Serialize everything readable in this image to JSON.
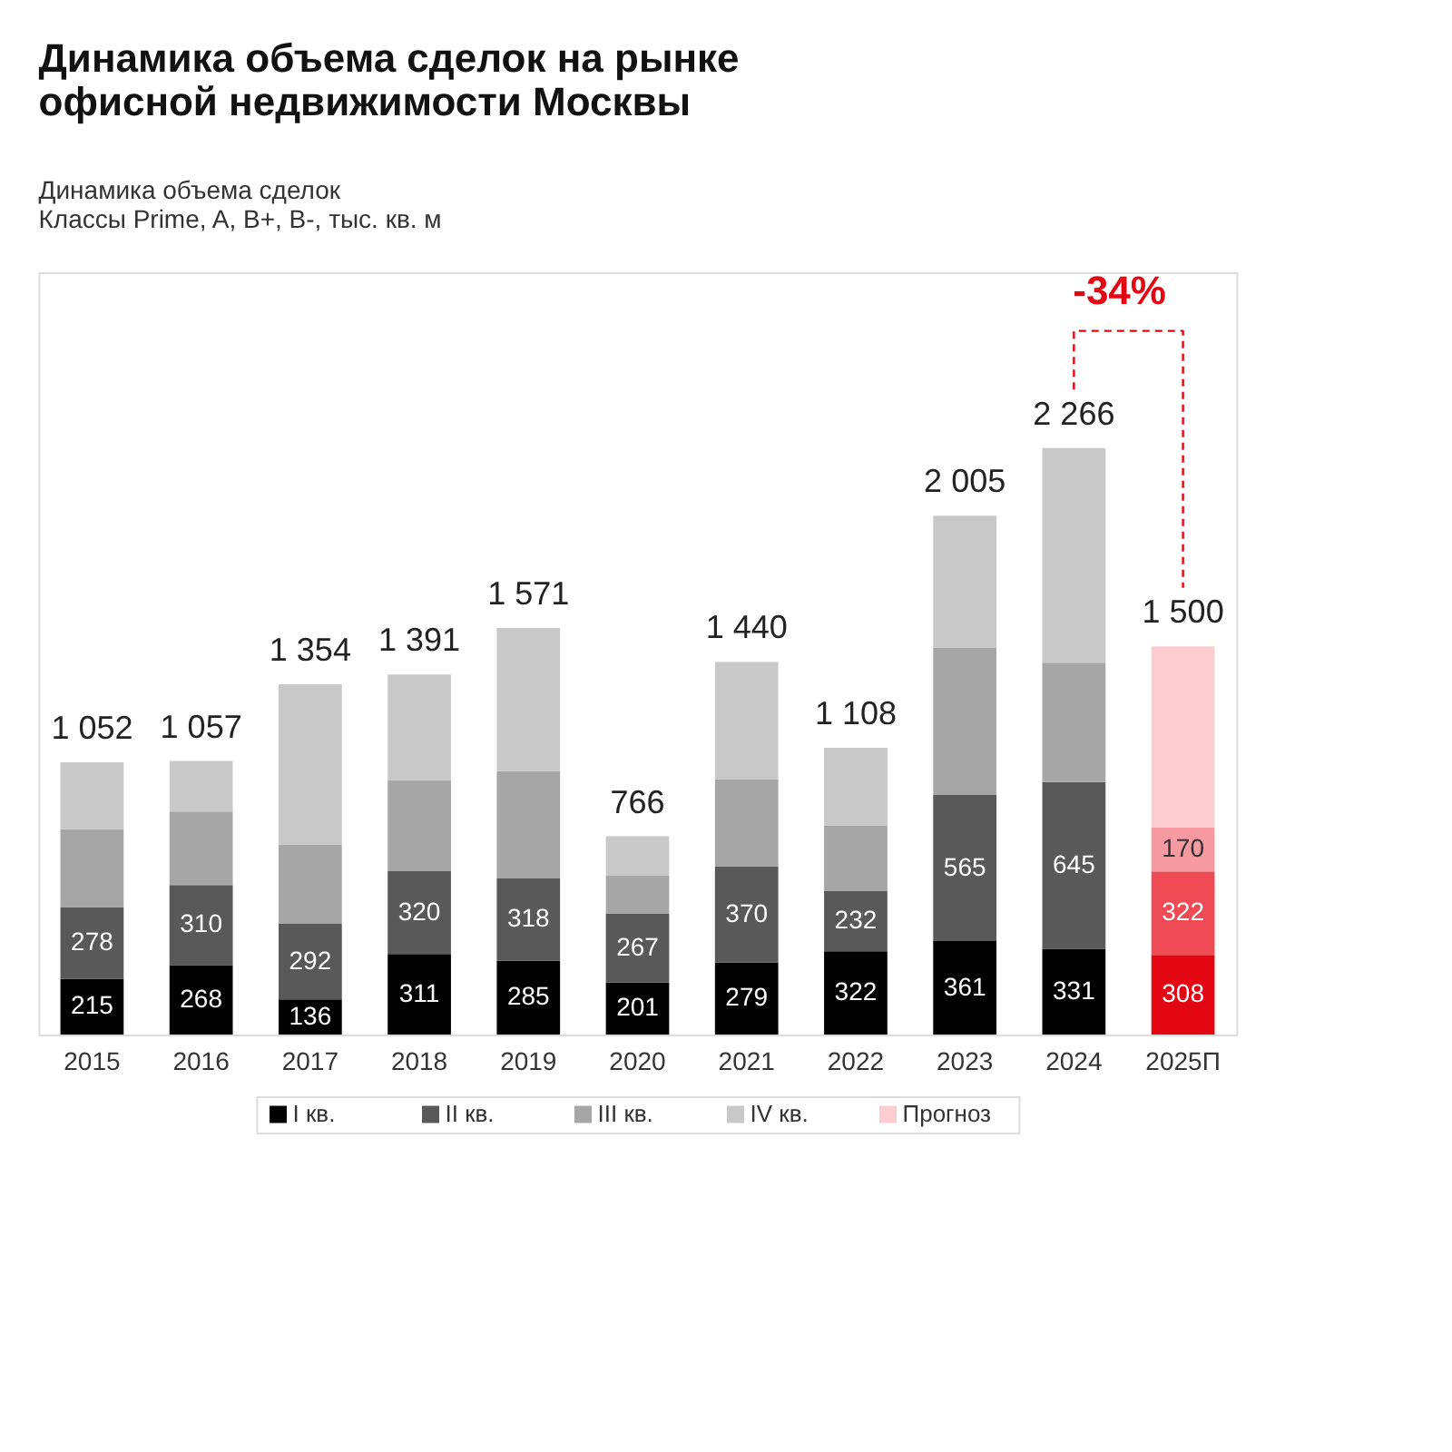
{
  "chart_data": {
    "type": "bar",
    "stacked": true,
    "title": "Динамика объема сделок на рынке офисной недвижимости Москвы",
    "subtitle": "Динамика объема сделок",
    "categories": [
      "2015",
      "2016",
      "2017",
      "2018",
      "2019",
      "2020",
      "2021",
      "2022",
      "2023",
      "2024",
      "2025П"
    ],
    "series": [
      {
        "name": "I кв.",
        "color": "#000000",
        "colors": [
          "#000000",
          "#000000",
          "#000000",
          "#000000",
          "#000000",
          "#000000",
          "#000000",
          "#000000",
          "#000000",
          "#000000",
          "#e30613"
        ],
        "values": [
          215,
          268,
          136,
          311,
          285,
          201,
          279,
          322,
          361,
          331,
          308
        ],
        "value_labels": [
          "215",
          "268",
          "136",
          "311",
          "285",
          "201",
          "279",
          "322",
          "361",
          "331",
          "308"
        ]
      },
      {
        "name": "II кв.",
        "color": "#595959",
        "colors": [
          "#595959",
          "#595959",
          "#595959",
          "#595959",
          "#595959",
          "#595959",
          "#595959",
          "#595959",
          "#595959",
          "#595959",
          "#ef4b55"
        ],
        "values": [
          278,
          310,
          292,
          320,
          318,
          267,
          370,
          232,
          565,
          645,
          322
        ],
        "value_labels": [
          "278",
          "310",
          "292",
          "320",
          "318",
          "267",
          "370",
          "232",
          "565",
          "645",
          "322"
        ]
      },
      {
        "name": "III кв.",
        "color": "#a6a6a6",
        "colors": [
          "#a6a6a6",
          "#a6a6a6",
          "#a6a6a6",
          "#a6a6a6",
          "#a6a6a6",
          "#a6a6a6",
          "#a6a6a6",
          "#a6a6a6",
          "#a6a6a6",
          "#a6a6a6",
          "#f59aa1"
        ],
        "values": [
          300,
          284,
          307,
          353,
          415,
          146,
          338,
          253,
          568,
          461,
          170
        ],
        "value_labels": [
          null,
          null,
          null,
          null,
          null,
          null,
          null,
          null,
          null,
          null,
          "170"
        ]
      },
      {
        "name": "IV кв.",
        "color": "#c8c8c8",
        "colors": [
          "#c8c8c8",
          "#c8c8c8",
          "#c8c8c8",
          "#c8c8c8",
          "#c8c8c8",
          "#c8c8c8",
          "#c8c8c8",
          "#c8c8c8",
          "#c8c8c8",
          "#c8c8c8",
          "#c8c8c8"
        ],
        "values": [
          259,
          195,
          619,
          407,
          553,
          152,
          453,
          301,
          511,
          829,
          null
        ]
      },
      {
        "name": "Прогноз",
        "color": "#fbcdd1",
        "colors": [
          "#fbcdd1",
          "#fbcdd1",
          "#fbcdd1",
          "#fbcdd1",
          "#fbcdd1",
          "#fbcdd1",
          "#fbcdd1",
          "#fbcdd1",
          "#fbcdd1",
          "#fbcdd1",
          "#fbcdd1"
        ],
        "values": [
          null,
          null,
          null,
          null,
          null,
          null,
          null,
          null,
          null,
          null,
          700
        ]
      }
    ],
    "totals": [
      "1 052",
      "1 057",
      "1 354",
      "1 391",
      "1 571",
      "766",
      "1 440",
      "1 108",
      "2 005",
      "2 266",
      "1 500"
    ],
    "annotations": [
      "Классы Prime, A, B+, B-, тыс. кв. м",
      "-34%"
    ],
    "legend": "bottom"
  }
}
